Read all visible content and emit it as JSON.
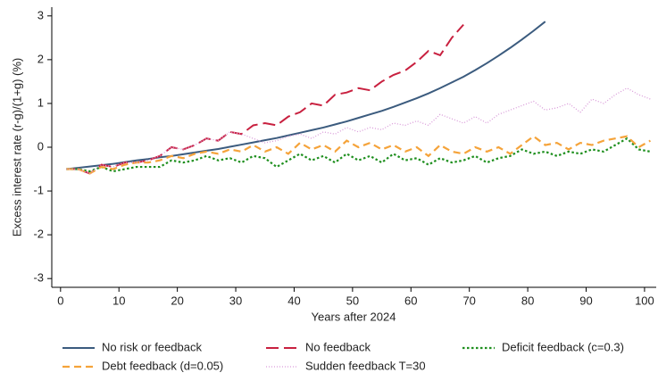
{
  "chart_data": {
    "type": "line",
    "x_label": "Years after 2024",
    "y_label": "Excess interest rate (r-g)/(1+g) (%)",
    "x": [
      1,
      3,
      5,
      7,
      9,
      11,
      13,
      15,
      17,
      19,
      21,
      23,
      25,
      27,
      29,
      31,
      33,
      35,
      37,
      39,
      41,
      43,
      45,
      47,
      49,
      51,
      53,
      55,
      57,
      59,
      61,
      63,
      65,
      67,
      69,
      71,
      73,
      75,
      77,
      79,
      81,
      83,
      85,
      87,
      89,
      91,
      93,
      95,
      97,
      99,
      101
    ],
    "xlim": [
      -1.5,
      102
    ],
    "xticks": [
      0,
      10,
      20,
      30,
      40,
      50,
      60,
      70,
      80,
      90,
      100
    ],
    "ylim": [
      -3.2,
      3.2
    ],
    "yticks": [
      -3,
      -2,
      -1,
      0,
      1,
      2,
      3
    ],
    "grid": false,
    "legend_position": "bottom",
    "series": [
      {
        "name": "No risk or feedback",
        "color": "#3b5b7e",
        "style": "solid",
        "values": [
          -0.5,
          -0.47,
          -0.44,
          -0.41,
          -0.38,
          -0.34,
          -0.3,
          -0.27,
          -0.23,
          -0.2,
          -0.16,
          -0.12,
          -0.08,
          -0.04,
          0.01,
          0.06,
          0.11,
          0.16,
          0.21,
          0.27,
          0.33,
          0.39,
          0.45,
          0.52,
          0.59,
          0.67,
          0.75,
          0.83,
          0.92,
          1.02,
          1.12,
          1.23,
          1.35,
          1.48,
          1.61,
          1.76,
          1.92,
          2.09,
          2.27,
          2.46,
          2.66,
          2.87,
          null,
          null,
          null,
          null,
          null,
          null,
          null,
          null,
          null
        ]
      },
      {
        "name": "No feedback",
        "color": "#c8203f",
        "style": "longdash",
        "values": [
          -0.5,
          -0.5,
          -0.6,
          -0.4,
          -0.45,
          -0.35,
          -0.35,
          -0.3,
          -0.2,
          0.0,
          -0.05,
          0.05,
          0.2,
          0.15,
          0.35,
          0.3,
          0.5,
          0.55,
          0.5,
          0.7,
          0.8,
          1.0,
          0.95,
          1.2,
          1.25,
          1.35,
          1.3,
          1.5,
          1.65,
          1.75,
          1.95,
          2.2,
          2.1,
          2.5,
          2.8,
          null,
          null,
          null,
          null,
          null,
          null,
          null,
          null,
          null,
          null,
          null,
          null,
          null,
          null,
          null,
          null
        ]
      },
      {
        "name": "Deficit feedback (c=0.3)",
        "color": "#1e8f1e",
        "style": "dot",
        "values": [
          -0.5,
          -0.5,
          -0.55,
          -0.45,
          -0.55,
          -0.5,
          -0.45,
          -0.45,
          -0.45,
          -0.3,
          -0.35,
          -0.3,
          -0.2,
          -0.3,
          -0.25,
          -0.35,
          -0.2,
          -0.25,
          -0.45,
          -0.3,
          -0.15,
          -0.3,
          -0.2,
          -0.35,
          -0.15,
          -0.3,
          -0.2,
          -0.35,
          -0.15,
          -0.3,
          -0.25,
          -0.4,
          -0.25,
          -0.35,
          -0.3,
          -0.2,
          -0.35,
          -0.25,
          -0.2,
          -0.05,
          -0.15,
          -0.1,
          -0.2,
          -0.1,
          -0.15,
          -0.05,
          -0.1,
          0.05,
          0.2,
          -0.05,
          -0.1
        ]
      },
      {
        "name": "Debt feedback (d=0.05)",
        "color": "#f5a33a",
        "style": "dash",
        "values": [
          -0.5,
          -0.5,
          -0.6,
          -0.45,
          -0.5,
          -0.4,
          -0.35,
          -0.35,
          -0.3,
          -0.2,
          -0.25,
          -0.15,
          -0.1,
          -0.15,
          -0.05,
          -0.1,
          0.05,
          -0.1,
          0.0,
          -0.15,
          0.1,
          -0.05,
          0.05,
          -0.1,
          0.15,
          0.0,
          0.1,
          -0.05,
          0.05,
          -0.1,
          0.0,
          -0.2,
          0.05,
          -0.1,
          -0.15,
          0.0,
          -0.1,
          0.0,
          -0.15,
          0.05,
          0.25,
          0.05,
          0.1,
          -0.05,
          0.1,
          0.05,
          0.15,
          0.2,
          0.25,
          0.0,
          0.15
        ]
      },
      {
        "name": "Sudden feedback T=30",
        "color": "#d99ad9",
        "style": "finedot",
        "values": [
          -0.5,
          -0.5,
          -0.6,
          -0.4,
          -0.45,
          -0.35,
          -0.35,
          -0.3,
          -0.2,
          0.0,
          -0.05,
          0.05,
          0.2,
          0.15,
          0.35,
          0.3,
          0.2,
          0.1,
          0.15,
          0.25,
          0.3,
          0.2,
          0.35,
          0.3,
          0.45,
          0.35,
          0.45,
          0.4,
          0.55,
          0.5,
          0.6,
          0.5,
          0.75,
          0.65,
          0.55,
          0.7,
          0.55,
          0.75,
          0.85,
          0.95,
          1.05,
          0.85,
          0.9,
          1.0,
          0.8,
          1.1,
          1.0,
          1.2,
          1.35,
          1.2,
          1.1
        ]
      }
    ]
  }
}
